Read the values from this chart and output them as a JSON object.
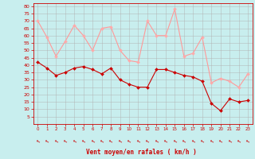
{
  "hours": [
    0,
    1,
    2,
    3,
    4,
    5,
    6,
    7,
    8,
    9,
    10,
    11,
    12,
    13,
    14,
    15,
    16,
    17,
    18,
    19,
    20,
    21,
    22,
    23
  ],
  "wind_mean": [
    42,
    38,
    33,
    35,
    38,
    39,
    37,
    34,
    38,
    30,
    27,
    25,
    25,
    37,
    37,
    35,
    33,
    32,
    29,
    14,
    9,
    17,
    15,
    16
  ],
  "wind_gust": [
    70,
    59,
    46,
    56,
    67,
    60,
    50,
    65,
    66,
    50,
    43,
    42,
    70,
    60,
    60,
    78,
    46,
    48,
    59,
    28,
    31,
    29,
    25,
    34
  ],
  "bg_color": "#c8eeee",
  "grid_color": "#b0b0b0",
  "line_mean_color": "#cc0000",
  "line_gust_color": "#ff9999",
  "marker_mean_color": "#cc0000",
  "marker_gust_color": "#ffaaaa",
  "xlabel": "Vent moyen/en rafales ( km/h )",
  "xlabel_color": "#cc0000",
  "tick_color": "#cc0000",
  "arrow_color": "#cc0000",
  "ylim": [
    0,
    82
  ],
  "yticks": [
    5,
    10,
    15,
    20,
    25,
    30,
    35,
    40,
    45,
    50,
    55,
    60,
    65,
    70,
    75,
    80
  ],
  "xlim": [
    -0.5,
    23.5
  ]
}
